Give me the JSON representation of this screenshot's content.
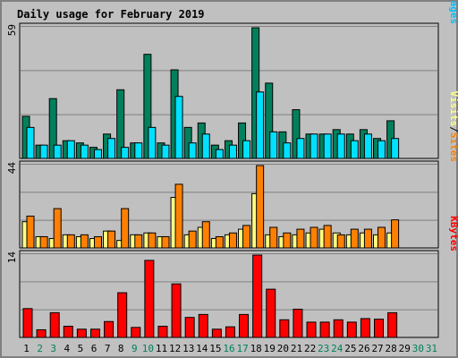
{
  "colors": {
    "hits": "#00805c",
    "files": "#00e0ff",
    "pages": "#00c0ff",
    "visits": "#ffff80",
    "sites": "#ff8000",
    "kbytes": "#ff0000",
    "title": "#0000ff",
    "weekend_label": "#00805c",
    "weekday_label": "#000000",
    "panel_bg": "#c0c0c0",
    "gridline": "#808080"
  },
  "chart_data": [
    {
      "type": "bar",
      "title": "Daily usage for February 2019",
      "ylim": [
        0,
        59
      ],
      "ymax_label": "59",
      "legend": [
        "Pages",
        "/",
        "Files",
        "/",
        "Hits"
      ],
      "legend_colors": [
        "#00c0ff",
        "#000000",
        "#00e0ff",
        "#000000",
        "#00805c"
      ],
      "legend_placement": "right, vertical",
      "grid": true,
      "series": [
        {
          "name": "Hits",
          "values": [
            19,
            6,
            27,
            8,
            7,
            5,
            11,
            31,
            7,
            47,
            7,
            40,
            14,
            16,
            6,
            8,
            16,
            59,
            34,
            12,
            22,
            11,
            11,
            13,
            11,
            13,
            9,
            17
          ]
        },
        {
          "name": "Files",
          "values": [
            14,
            6,
            6,
            8,
            6,
            4,
            9,
            5,
            7,
            14,
            6,
            28,
            7,
            11,
            4,
            6,
            8,
            30,
            12,
            7,
            9,
            11,
            11,
            11,
            8,
            11,
            8,
            9
          ]
        },
        {
          "name": "Pages",
          "values": [
            0,
            0,
            0,
            0,
            0,
            0,
            0,
            0,
            0,
            0,
            0,
            0,
            0,
            0,
            0,
            0,
            0,
            0,
            0,
            0,
            0,
            0,
            0,
            0,
            0,
            0,
            0,
            0
          ]
        }
      ]
    },
    {
      "type": "bar",
      "ylim": [
        0,
        44
      ],
      "ymax_label": "44",
      "legend": [
        "Sites",
        "/",
        "Visits"
      ],
      "legend_colors": [
        "#ff8000",
        "#000000",
        "#ffff80"
      ],
      "legend_placement": "right, vertical",
      "grid": true,
      "series": [
        {
          "name": "Visits",
          "values": [
            14,
            6,
            5,
            7,
            6,
            5,
            9,
            4,
            7,
            8,
            6,
            27,
            7,
            11,
            5,
            7,
            10,
            29,
            7,
            6,
            7,
            8,
            10,
            8,
            7,
            8,
            7,
            8
          ]
        },
        {
          "name": "Sites",
          "values": [
            17,
            6,
            21,
            7,
            7,
            6,
            9,
            21,
            7,
            8,
            6,
            34,
            9,
            14,
            6,
            8,
            12,
            44,
            11,
            8,
            10,
            11,
            12,
            7,
            10,
            10,
            11,
            15
          ]
        }
      ]
    },
    {
      "type": "bar",
      "ylim": [
        0,
        14
      ],
      "ymax_label": "14",
      "legend": [
        "KBytes"
      ],
      "legend_colors": [
        "#ff0000"
      ],
      "legend_placement": "right, vertical",
      "grid": true,
      "series": [
        {
          "name": "KBytes",
          "values": [
            4.9,
            1.3,
            4.2,
            1.9,
            1.4,
            1.4,
            2.7,
            7.6,
            1.7,
            13.1,
            1.9,
            9.1,
            3.4,
            3.9,
            1.4,
            1.8,
            3.9,
            14,
            8.2,
            3,
            4.8,
            2.6,
            2.6,
            3,
            2.6,
            3.2,
            3.1,
            4.2
          ]
        }
      ]
    }
  ],
  "x_labels": [
    "1",
    "2",
    "3",
    "4",
    "5",
    "6",
    "7",
    "8",
    "9",
    "10",
    "11",
    "12",
    "13",
    "14",
    "15",
    "16",
    "17",
    "18",
    "19",
    "20",
    "21",
    "22",
    "23",
    "24",
    "25",
    "26",
    "27",
    "28",
    "29",
    "30",
    "31"
  ],
  "weekend_days": [
    "2",
    "3",
    "9",
    "10",
    "16",
    "17",
    "23",
    "24",
    "30",
    "31"
  ]
}
